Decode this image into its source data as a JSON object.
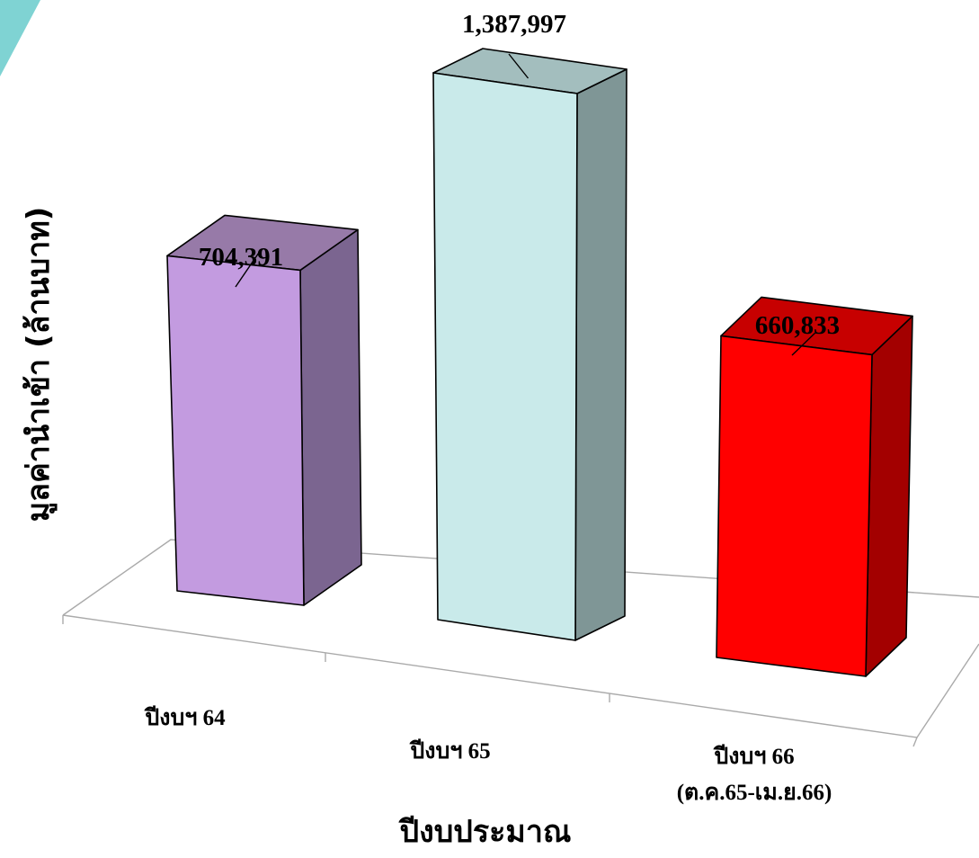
{
  "chart_data": {
    "type": "bar",
    "view": "3d",
    "categories": [
      [
        "ปีงบฯ 64"
      ],
      [
        "ปีงบฯ 65"
      ],
      [
        "ปีงบฯ 66",
        "(ต.ค.65-เม.ย.66)"
      ]
    ],
    "values": [
      704391,
      1387997,
      660833
    ],
    "value_labels": [
      "704,391",
      "1,387,997",
      "660,833"
    ],
    "bar_colors": [
      {
        "front": "#c39be0",
        "top": "#977aa8",
        "side": "#7b6590"
      },
      {
        "front": "#c9eaea",
        "top": "#a3bebe",
        "side": "#7f9696"
      },
      {
        "front": "#ff0000",
        "top": "#c70000",
        "side": "#a30000"
      }
    ],
    "xlabel": "ปีงบประมาณ",
    "ylabel": "มูลค่านำเข้า (ล้านบาท)",
    "grid": false,
    "legend": "none"
  },
  "decoration": {
    "corner_color": "#7fd3d3"
  }
}
